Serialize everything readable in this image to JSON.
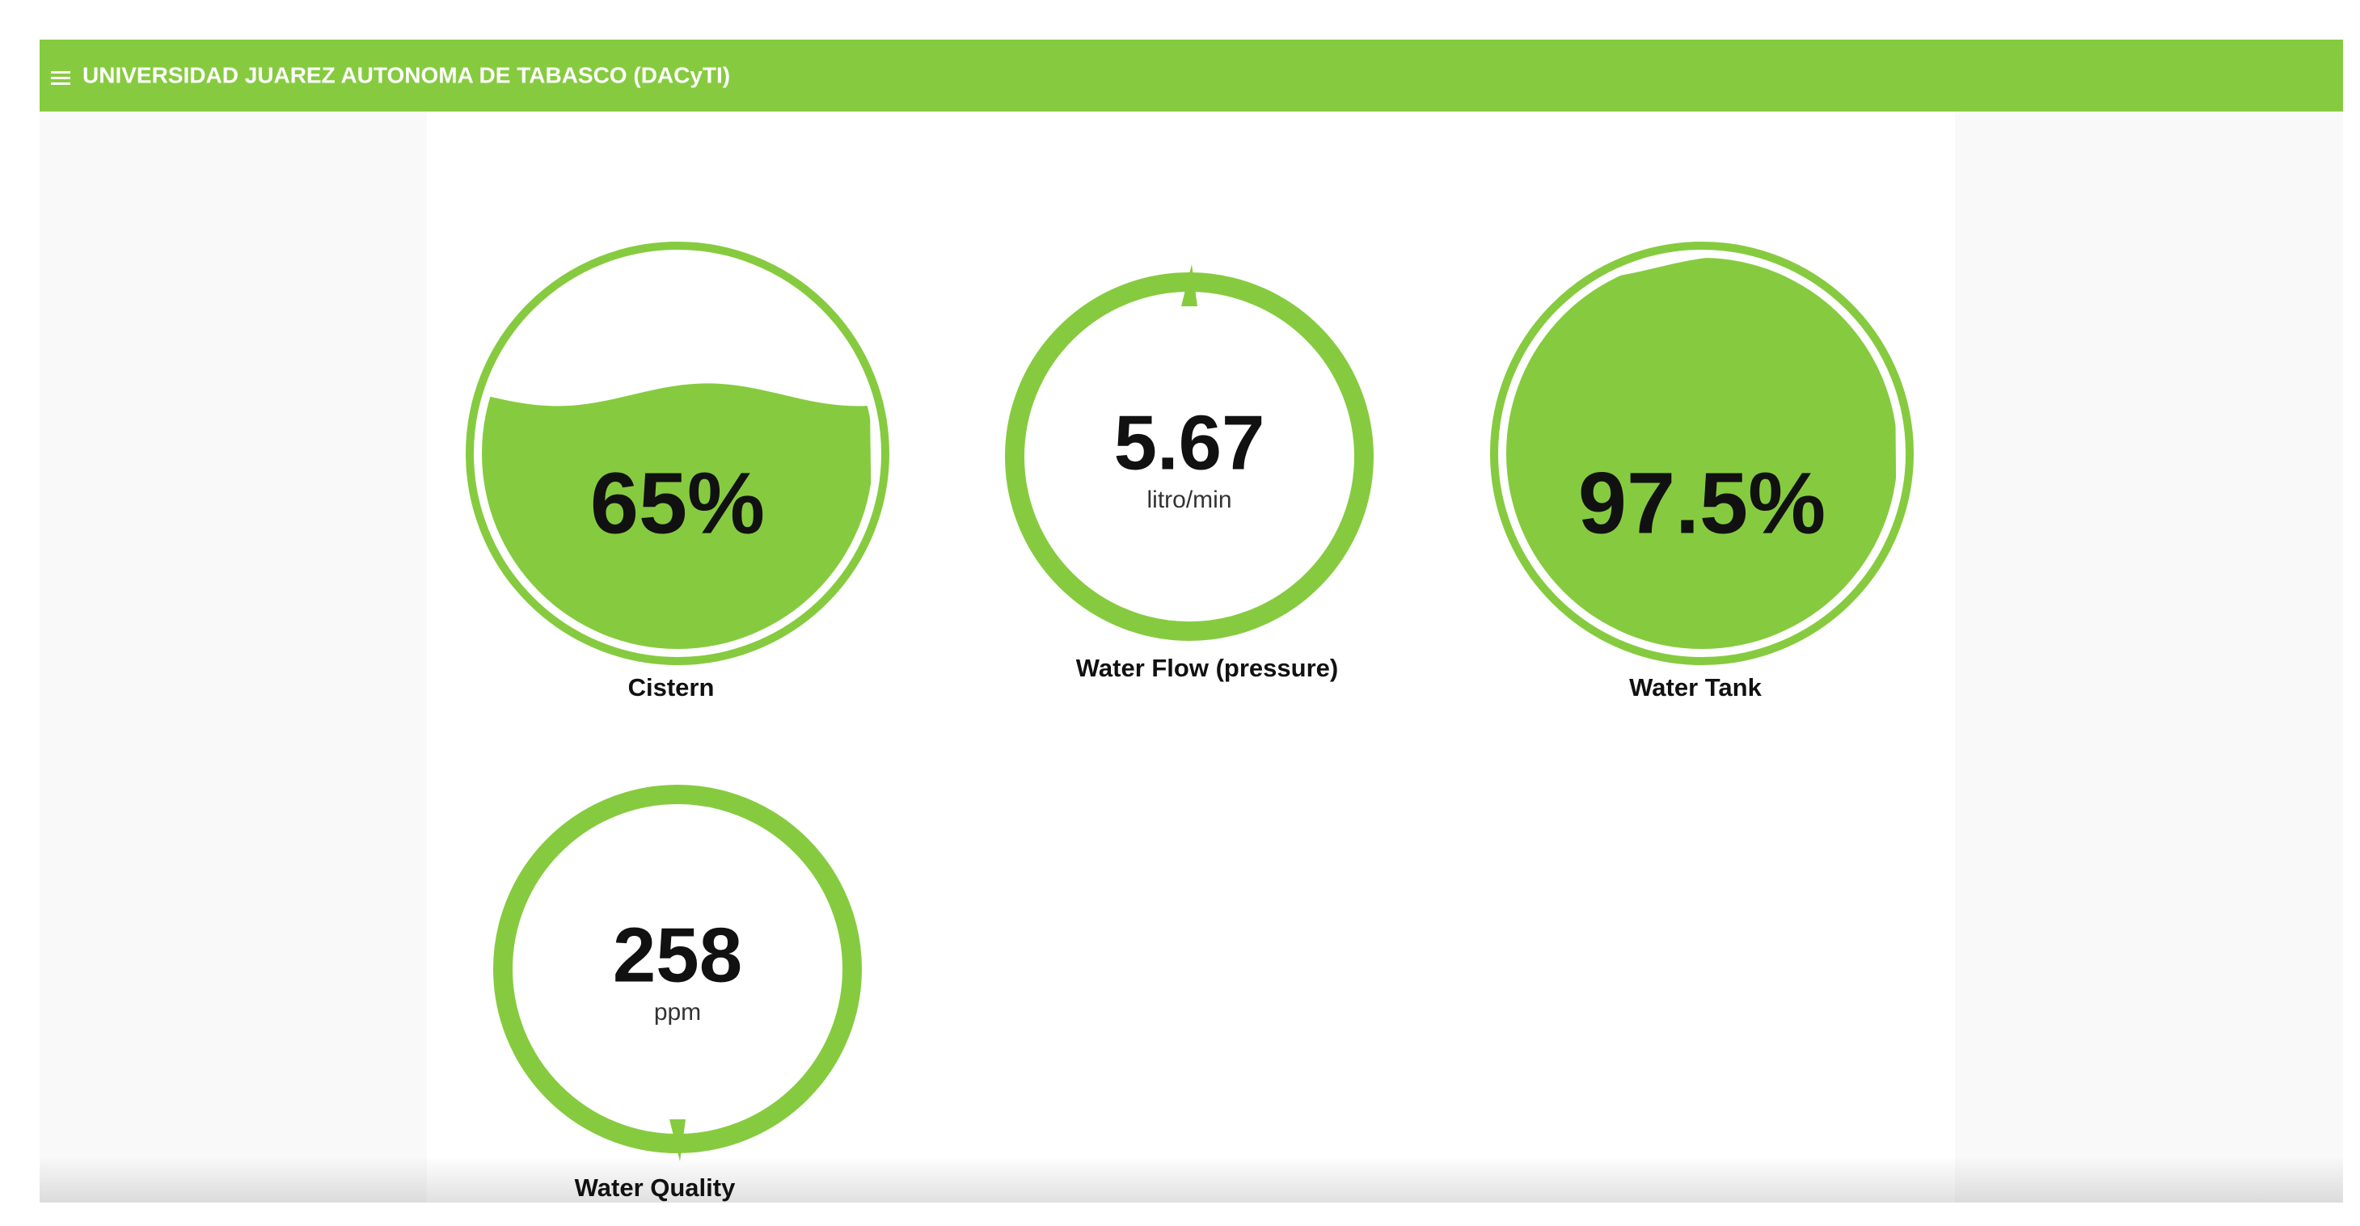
{
  "header": {
    "title": "UNIVERSIDAD JUAREZ AUTONOMA DE TABASCO (DACyTI)"
  },
  "gauges": [
    {
      "label": "Cistern",
      "kind": "liquid",
      "value": 65,
      "value_label": "65%"
    },
    {
      "label": "Water Flow (pressure)",
      "kind": "ring",
      "value": 5.67,
      "unit": "litro/min"
    },
    {
      "label": "Water Tank",
      "kind": "liquid",
      "value": 97.5,
      "value_label": "97.5%"
    },
    {
      "label": "Water Quality",
      "kind": "ring",
      "value": 258,
      "unit": "ppm"
    }
  ],
  "color": "#86cb3f"
}
